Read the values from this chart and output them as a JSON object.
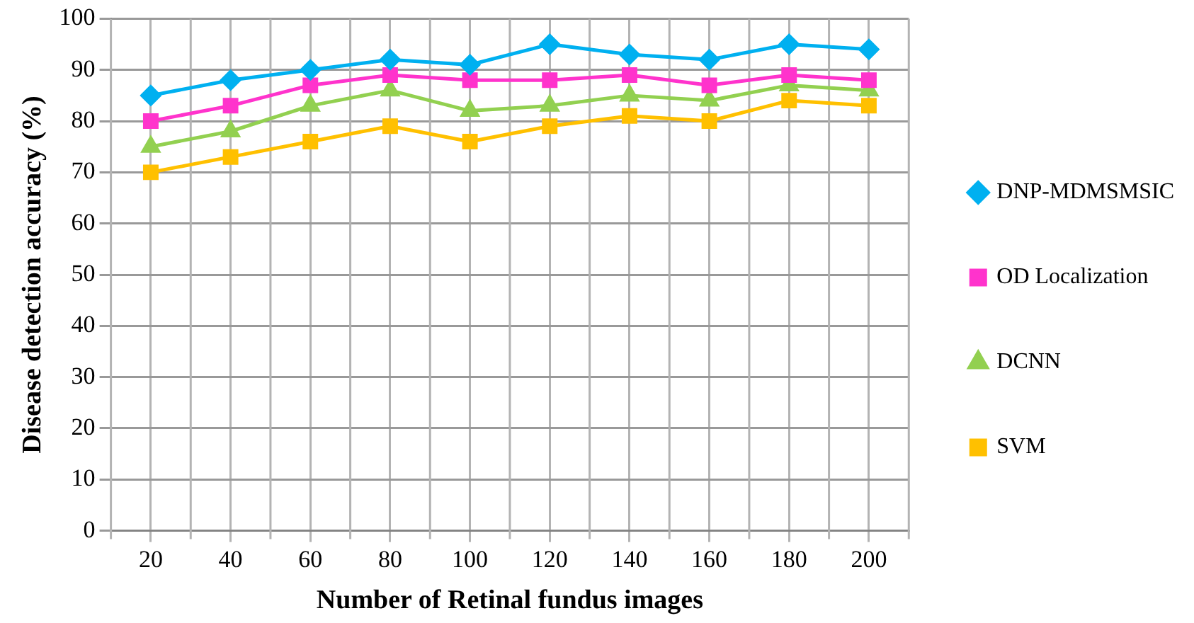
{
  "chart_data": {
    "type": "line",
    "xlabel": "Number of Retinal fundus images",
    "ylabel": "Disease detection accuracy (%)",
    "categories": [
      "20",
      "40",
      "60",
      "80",
      "100",
      "120",
      "140",
      "160",
      "180",
      "200"
    ],
    "series": [
      {
        "name": "DNP-MDMSMSIC",
        "color": "#00b0f0",
        "marker": "diamond",
        "values": [
          85,
          88,
          90,
          92,
          91,
          95,
          93,
          92,
          95,
          94
        ]
      },
      {
        "name": "OD Localization",
        "color": "#ff33cc",
        "marker": "square",
        "values": [
          80,
          83,
          87,
          89,
          88,
          88,
          89,
          87,
          89,
          88
        ]
      },
      {
        "name": "DCNN",
        "color": "#92d050",
        "marker": "triangle",
        "values": [
          75,
          78,
          83,
          86,
          82,
          83,
          85,
          84,
          87,
          86
        ]
      },
      {
        "name": "SVM",
        "color": "#ffc000",
        "marker": "square",
        "values": [
          70,
          73,
          76,
          79,
          76,
          79,
          81,
          80,
          84,
          83
        ]
      }
    ],
    "ylim": [
      0,
      100
    ],
    "yticks": [
      0,
      10,
      20,
      30,
      40,
      50,
      60,
      70,
      80,
      90,
      100
    ],
    "grid": true,
    "legend": "right",
    "line_style": "solid"
  }
}
